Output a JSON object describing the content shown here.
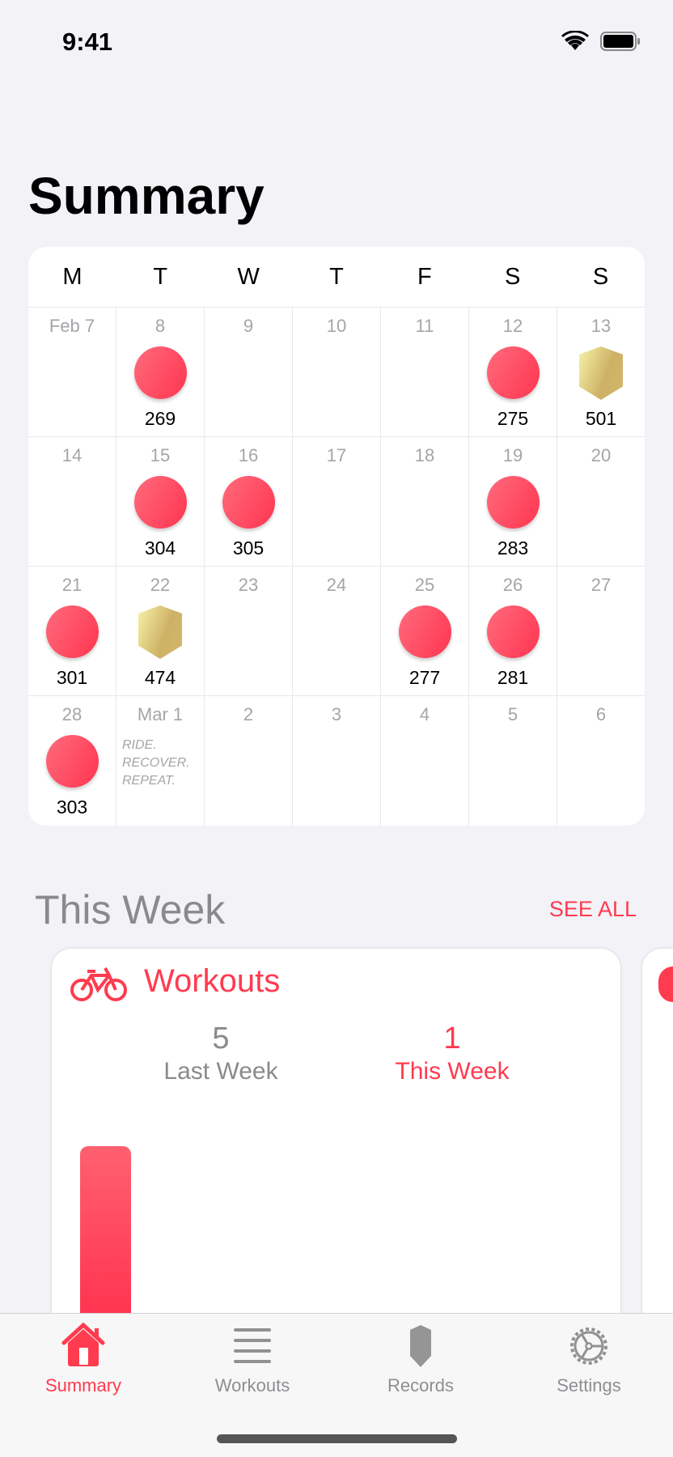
{
  "status": {
    "time": "9:41"
  },
  "title": "Summary",
  "calendar": {
    "weekdays": [
      "M",
      "T",
      "W",
      "T",
      "F",
      "S",
      "S"
    ],
    "weeks": [
      [
        {
          "date": "Feb 7"
        },
        {
          "date": "8",
          "type": "dot",
          "value": "269"
        },
        {
          "date": "9"
        },
        {
          "date": "10"
        },
        {
          "date": "11"
        },
        {
          "date": "12",
          "type": "dot",
          "value": "275"
        },
        {
          "date": "13",
          "type": "shield",
          "value": "501"
        }
      ],
      [
        {
          "date": "14"
        },
        {
          "date": "15",
          "type": "dot",
          "value": "304"
        },
        {
          "date": "16",
          "type": "dot",
          "value": "305"
        },
        {
          "date": "17"
        },
        {
          "date": "18"
        },
        {
          "date": "19",
          "type": "dot",
          "value": "283"
        },
        {
          "date": "20"
        }
      ],
      [
        {
          "date": "21",
          "type": "dot",
          "value": "301"
        },
        {
          "date": "22",
          "type": "shield",
          "value": "474"
        },
        {
          "date": "23"
        },
        {
          "date": "24"
        },
        {
          "date": "25",
          "type": "dot",
          "value": "277"
        },
        {
          "date": "26",
          "type": "dot",
          "value": "281"
        },
        {
          "date": "27"
        }
      ],
      [
        {
          "date": "28",
          "type": "dot",
          "value": "303"
        },
        {
          "date": "Mar 1",
          "note": [
            "RIDE.",
            "RECOVER.",
            "REPEAT."
          ]
        },
        {
          "date": "2"
        },
        {
          "date": "3"
        },
        {
          "date": "4"
        },
        {
          "date": "5"
        },
        {
          "date": "6"
        }
      ]
    ]
  },
  "this_week": {
    "heading": "This Week",
    "see_all": "SEE ALL",
    "workouts_card": {
      "title": "Workouts",
      "icon": "bicycle-icon",
      "last_week_value": "5",
      "last_week_label": "Last Week",
      "this_week_value": "1",
      "this_week_label": "This Week"
    }
  },
  "tabs": [
    {
      "label": "Summary",
      "icon": "house-icon",
      "active": true
    },
    {
      "label": "Workouts",
      "icon": "list-icon"
    },
    {
      "label": "Records",
      "icon": "shield-icon"
    },
    {
      "label": "Settings",
      "icon": "gear-icon"
    }
  ],
  "colors": {
    "accent": "#ff3b4f",
    "gold": "#cdb165",
    "inactive": "#8e8e93"
  }
}
